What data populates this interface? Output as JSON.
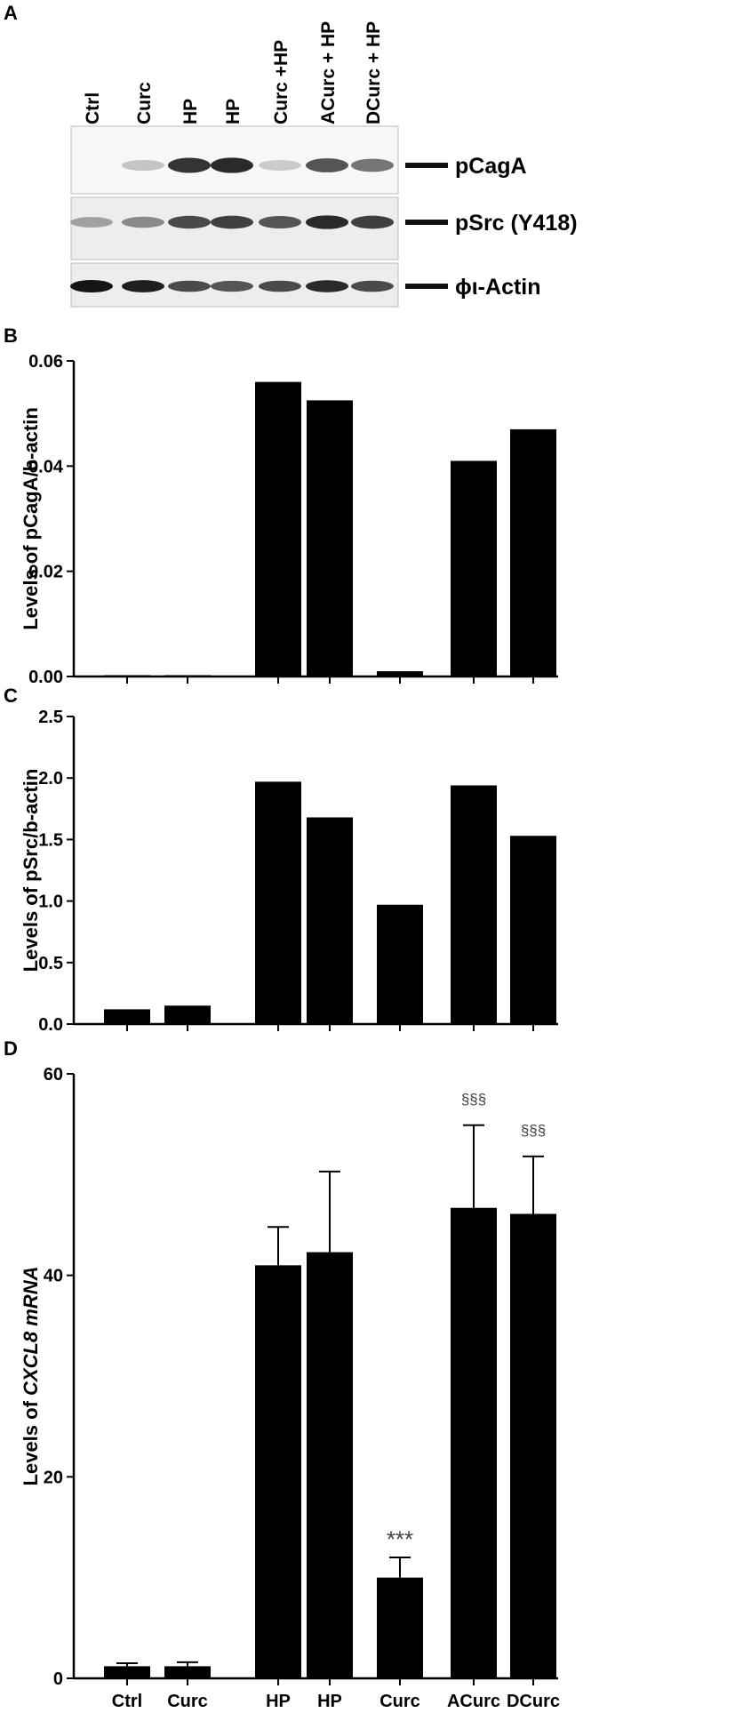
{
  "panels": {
    "a": "A",
    "b": "B",
    "c": "C",
    "d": "D"
  },
  "blot": {
    "lanes": [
      "Ctrl",
      "Curc",
      "HP",
      "HP",
      "Curc +HP",
      "ACurc + HP",
      "DCurc + HP"
    ],
    "rows": [
      {
        "label": "pCagA",
        "intensities": [
          0.0,
          0.18,
          0.85,
          0.9,
          0.15,
          0.7,
          0.55
        ]
      },
      {
        "label": "pSrc (Y418)",
        "intensities": [
          0.35,
          0.45,
          0.75,
          0.8,
          0.7,
          0.9,
          0.8
        ]
      },
      {
        "label": "ϕι-Actin",
        "intensities": [
          1.0,
          0.95,
          0.75,
          0.7,
          0.75,
          0.9,
          0.75
        ]
      }
    ]
  },
  "chart_data": [
    {
      "type": "bar",
      "panel": "B",
      "categories": [
        "Ctrl",
        "Curc",
        "HP",
        "HP",
        "Curc +HP",
        "ACurc + HP",
        "DCurc + HP"
      ],
      "values": [
        0.0,
        0.0,
        0.056,
        0.0525,
        0.001,
        0.041,
        0.047
      ],
      "ylabel": "Levels of pCagA/b-actin",
      "ylim": [
        0,
        0.06
      ],
      "yticks": [
        "0.00",
        "0.02",
        "0.04",
        "0.06"
      ]
    },
    {
      "type": "bar",
      "panel": "C",
      "categories": [
        "Ctrl",
        "Curc",
        "HP",
        "HP",
        "Curc +HP",
        "ACurc + HP",
        "DCurc + HP"
      ],
      "values": [
        0.12,
        0.15,
        1.97,
        1.68,
        0.97,
        1.94,
        1.53
      ],
      "ylabel": "Levels of pSrc/b-actin",
      "ylim": [
        0,
        2.5
      ],
      "yticks": [
        "0.0",
        "0.5",
        "1.0",
        "1.5",
        "2.0",
        "2.5"
      ]
    },
    {
      "type": "bar",
      "panel": "D",
      "categories": [
        "Ctrl",
        "Curc",
        "HP",
        "HP",
        "Curc",
        "ACurc",
        "DCurc"
      ],
      "values": [
        1.2,
        1.2,
        41.0,
        42.3,
        10.0,
        46.7,
        46.1
      ],
      "errors": [
        0.3,
        0.4,
        3.8,
        8.0,
        2.0,
        8.2,
        5.7
      ],
      "annotations": [
        "",
        "",
        "",
        "",
        "***",
        "§§§",
        "§§§"
      ],
      "ylabel_prefix": "Levels of ",
      "ylabel_italic": "CXCL8 mRNA",
      "ylim": [
        0,
        60
      ],
      "yticks": [
        "0",
        "20",
        "40",
        "60"
      ]
    }
  ]
}
